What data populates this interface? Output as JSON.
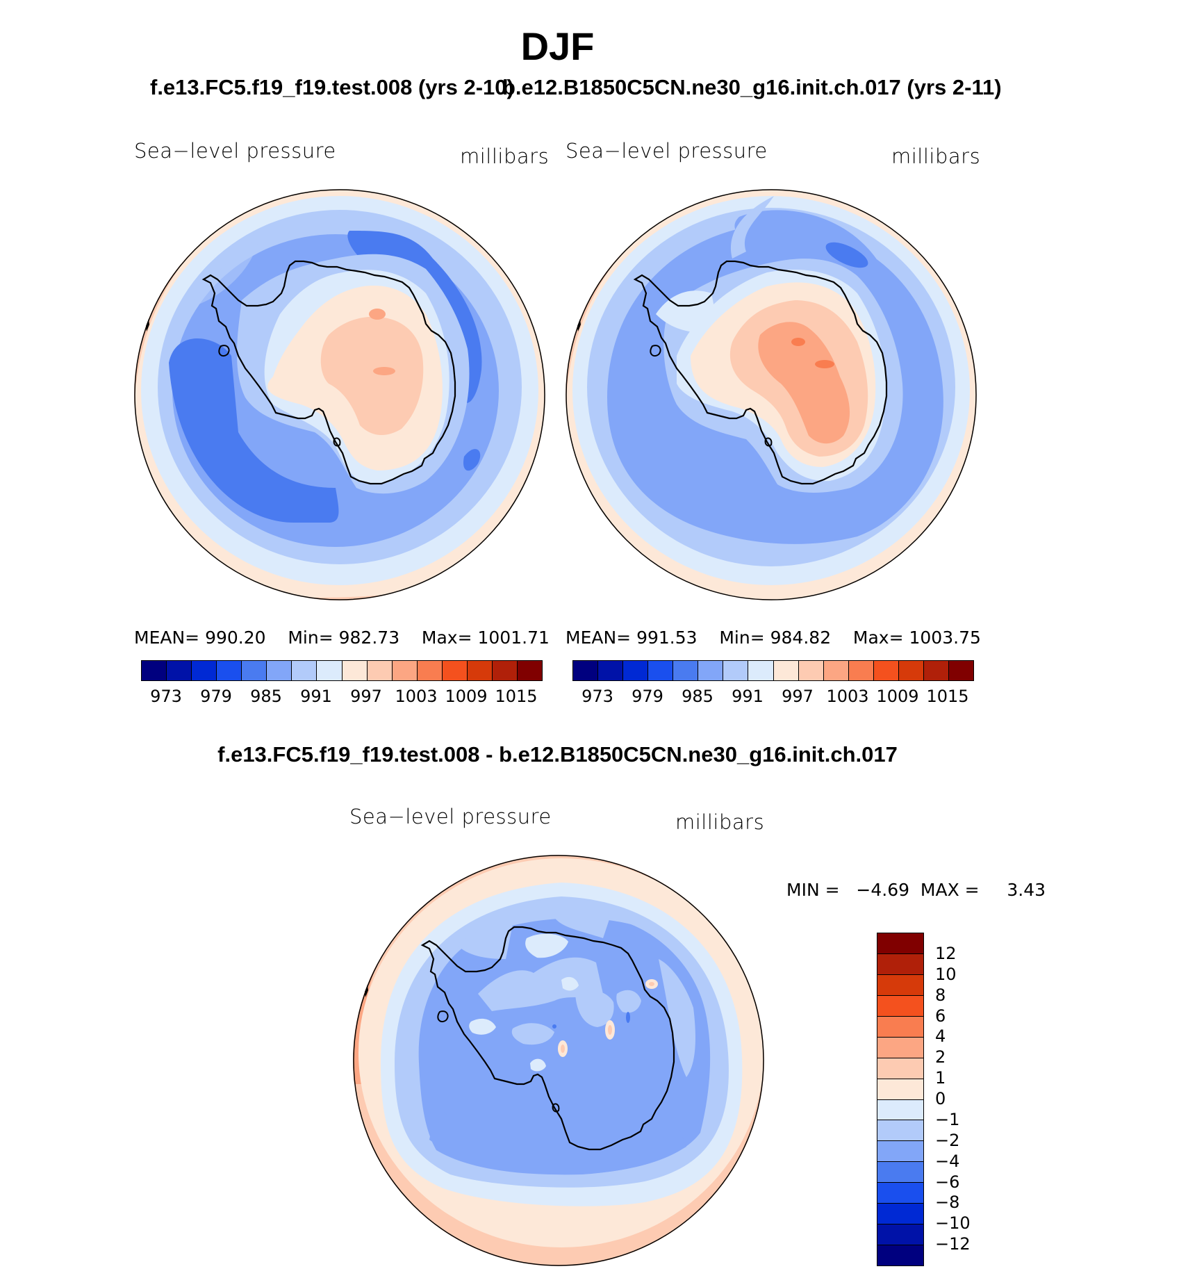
{
  "title": "DJF",
  "panels": [
    {
      "case_title": "f.e13.FC5.f19_f19.test.008 (yrs 2-10)",
      "left_label": "Sea−level pressure",
      "right_label": "millibars",
      "stats": {
        "mean_label": "MEAN=",
        "mean": "990.20",
        "min_label": "Min=",
        "min": "982.73",
        "max_label": "Max=",
        "max": "1001.71"
      },
      "colorbar_ticks": [
        "973",
        "979",
        "985",
        "991",
        "997",
        "1003",
        "1009",
        "1015"
      ]
    },
    {
      "case_title": "b.e12.B1850C5CN.ne30_g16.init.ch.017 (yrs 2-11)",
      "left_label": "Sea−level pressure",
      "right_label": "millibars",
      "stats": {
        "mean_label": "MEAN=",
        "mean": "991.53",
        "min_label": "Min=",
        "min": "984.82",
        "max_label": "Max=",
        "max": "1003.75"
      },
      "colorbar_ticks": [
        "973",
        "979",
        "985",
        "991",
        "997",
        "1003",
        "1009",
        "1015"
      ]
    }
  ],
  "difference": {
    "title": "f.e13.FC5.f19_f19.test.008 - b.e12.B1850C5CN.ne30_g16.init.ch.017",
    "left_label": "Sea−level pressure",
    "right_label": "millibars",
    "min_label": "MIN =",
    "min": "−4.69",
    "max_label": "MAX =",
    "max": "3.43",
    "colorbar_ticks": [
      "12",
      "10",
      "8",
      "6",
      "4",
      "2",
      "1",
      "0",
      "−1",
      "−2",
      "−4",
      "−6",
      "−8",
      "−10",
      "−12"
    ]
  },
  "palette": [
    "#00007f",
    "#0012a8",
    "#0029d4",
    "#1a4fee",
    "#4a7bf0",
    "#82a6f8",
    "#b2cbfa",
    "#dcebfc",
    "#fde8d8",
    "#fdcbb2",
    "#fca683",
    "#f97d50",
    "#f4511e",
    "#d63a0a",
    "#b02009",
    "#800000"
  ],
  "chart_data": [
    {
      "type": "heatmap",
      "title": "f.e13.FC5.f19_f19.test.008 (yrs 2-10)",
      "variable": "Sea−level pressure",
      "units": "millibars",
      "projection": "south polar stereographic",
      "levels": [
        973,
        976,
        979,
        982,
        985,
        988,
        991,
        994,
        997,
        1000,
        1003,
        1006,
        1009,
        1012,
        1015
      ],
      "mean": 990.2,
      "min": 982.73,
      "max": 1001.71
    },
    {
      "type": "heatmap",
      "title": "b.e12.B1850C5CN.ne30_g16.init.ch.017 (yrs 2-11)",
      "variable": "Sea−level pressure",
      "units": "millibars",
      "projection": "south polar stereographic",
      "levels": [
        973,
        976,
        979,
        982,
        985,
        988,
        991,
        994,
        997,
        1000,
        1003,
        1006,
        1009,
        1012,
        1015
      ],
      "mean": 991.53,
      "min": 984.82,
      "max": 1003.75
    },
    {
      "type": "heatmap",
      "title": "f.e13.FC5.f19_f19.test.008 - b.e12.B1850C5CN.ne30_g16.init.ch.017",
      "variable": "Sea−level pressure",
      "units": "millibars",
      "projection": "south polar stereographic",
      "levels": [
        -12,
        -10,
        -8,
        -6,
        -4,
        -2,
        -1,
        0,
        1,
        2,
        4,
        6,
        8,
        10,
        12
      ],
      "min": -4.69,
      "max": 3.43
    }
  ]
}
